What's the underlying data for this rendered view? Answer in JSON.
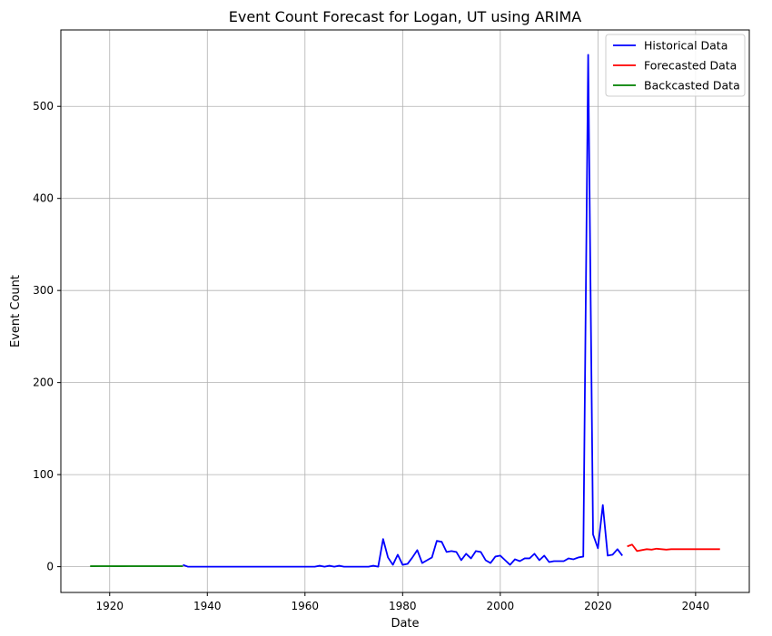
{
  "chart_data": {
    "type": "line",
    "title": "Event Count Forecast for Logan, UT using ARIMA",
    "xlabel": "Date",
    "ylabel": "Event Count",
    "xlim": [
      1910,
      2051
    ],
    "ylim": [
      -28,
      583
    ],
    "xticks": [
      1920,
      1940,
      1960,
      1980,
      2000,
      2020,
      2040
    ],
    "yticks": [
      0,
      100,
      200,
      300,
      400,
      500
    ],
    "grid": true,
    "legend_position": "top-right",
    "series": [
      {
        "name": "Historical Data",
        "color": "#0000ff",
        "x": [
          1935,
          1936,
          1940,
          1945,
          1950,
          1955,
          1960,
          1962,
          1963,
          1964,
          1965,
          1966,
          1967,
          1968,
          1970,
          1973,
          1974,
          1975,
          1976,
          1977,
          1978,
          1979,
          1980,
          1981,
          1982,
          1983,
          1984,
          1985,
          1986,
          1987,
          1988,
          1989,
          1990,
          1991,
          1992,
          1993,
          1994,
          1995,
          1996,
          1997,
          1998,
          1999,
          2000,
          2001,
          2002,
          2003,
          2004,
          2005,
          2006,
          2007,
          2008,
          2009,
          2010,
          2011,
          2012,
          2013,
          2014,
          2015,
          2016,
          2017,
          2018,
          2019,
          2020,
          2021,
          2022,
          2023,
          2024,
          2025
        ],
        "y": [
          2,
          0,
          0,
          0,
          0,
          0,
          0,
          0,
          1,
          0,
          1,
          0,
          1,
          0,
          0,
          0,
          1,
          0,
          30,
          10,
          2,
          13,
          2,
          3,
          10,
          18,
          4,
          7,
          10,
          28,
          27,
          16,
          17,
          16,
          7,
          14,
          9,
          17,
          16,
          7,
          4,
          11,
          12,
          7,
          2,
          8,
          6,
          9,
          9,
          14,
          7,
          12,
          5,
          6,
          6,
          6,
          9,
          8,
          10,
          11,
          556,
          35,
          20,
          67,
          12,
          13,
          19,
          12
        ]
      },
      {
        "name": "Forecasted Data",
        "color": "#ff0000",
        "x": [
          2026,
          2027,
          2028,
          2029,
          2030,
          2031,
          2032,
          2033,
          2034,
          2035,
          2036,
          2037,
          2038,
          2039,
          2040,
          2041,
          2042,
          2043,
          2044,
          2045
        ],
        "y": [
          22,
          24,
          17,
          18,
          19,
          18.5,
          19.5,
          19,
          18.5,
          19,
          19,
          19,
          19,
          19,
          19,
          19,
          19,
          19,
          19,
          19
        ]
      },
      {
        "name": "Backcasted Data",
        "color": "#008000",
        "x": [
          1916,
          1918,
          1920,
          1922,
          1924,
          1926,
          1928,
          1930,
          1932,
          1934,
          1935
        ],
        "y": [
          0.5,
          0.6,
          0.6,
          0.5,
          0.6,
          0.6,
          0.6,
          0.6,
          0.6,
          0.6,
          0.6
        ]
      }
    ]
  }
}
